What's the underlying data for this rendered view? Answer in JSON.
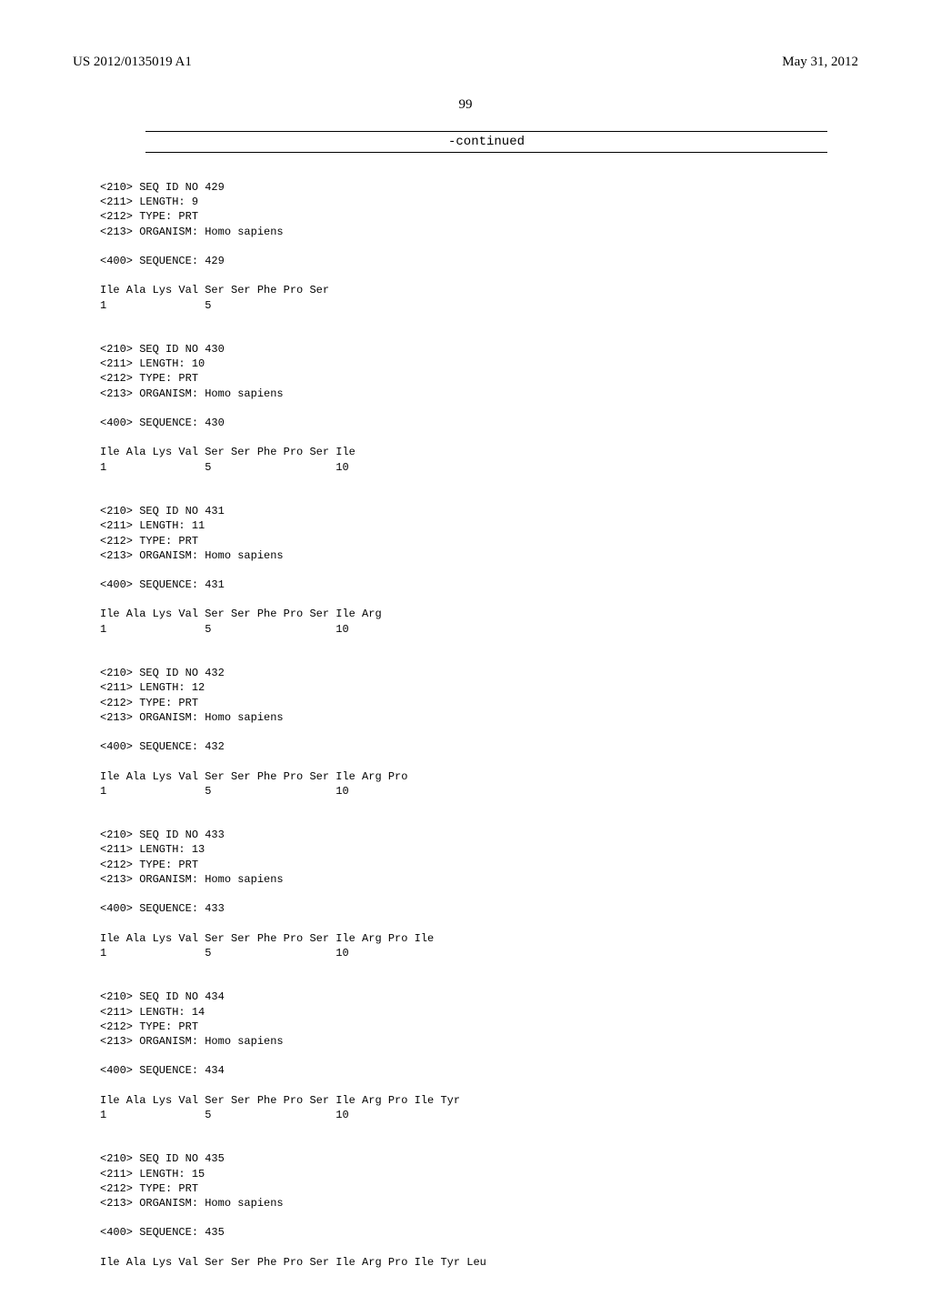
{
  "header": {
    "pub_number": "US 2012/0135019 A1",
    "pub_date": "May 31, 2012"
  },
  "page_number": "99",
  "continued_label": "-continued",
  "sequences": [
    {
      "seq_id": "<210> SEQ ID NO 429",
      "length": "<211> LENGTH: 9",
      "type": "<212> TYPE: PRT",
      "organism": "<213> ORGANISM: Homo sapiens",
      "seq_label": "<400> SEQUENCE: 429",
      "residues": "Ile Ala Lys Val Ser Ser Phe Pro Ser",
      "numbers": "1               5"
    },
    {
      "seq_id": "<210> SEQ ID NO 430",
      "length": "<211> LENGTH: 10",
      "type": "<212> TYPE: PRT",
      "organism": "<213> ORGANISM: Homo sapiens",
      "seq_label": "<400> SEQUENCE: 430",
      "residues": "Ile Ala Lys Val Ser Ser Phe Pro Ser Ile",
      "numbers": "1               5                   10"
    },
    {
      "seq_id": "<210> SEQ ID NO 431",
      "length": "<211> LENGTH: 11",
      "type": "<212> TYPE: PRT",
      "organism": "<213> ORGANISM: Homo sapiens",
      "seq_label": "<400> SEQUENCE: 431",
      "residues": "Ile Ala Lys Val Ser Ser Phe Pro Ser Ile Arg",
      "numbers": "1               5                   10"
    },
    {
      "seq_id": "<210> SEQ ID NO 432",
      "length": "<211> LENGTH: 12",
      "type": "<212> TYPE: PRT",
      "organism": "<213> ORGANISM: Homo sapiens",
      "seq_label": "<400> SEQUENCE: 432",
      "residues": "Ile Ala Lys Val Ser Ser Phe Pro Ser Ile Arg Pro",
      "numbers": "1               5                   10"
    },
    {
      "seq_id": "<210> SEQ ID NO 433",
      "length": "<211> LENGTH: 13",
      "type": "<212> TYPE: PRT",
      "organism": "<213> ORGANISM: Homo sapiens",
      "seq_label": "<400> SEQUENCE: 433",
      "residues": "Ile Ala Lys Val Ser Ser Phe Pro Ser Ile Arg Pro Ile",
      "numbers": "1               5                   10"
    },
    {
      "seq_id": "<210> SEQ ID NO 434",
      "length": "<211> LENGTH: 14",
      "type": "<212> TYPE: PRT",
      "organism": "<213> ORGANISM: Homo sapiens",
      "seq_label": "<400> SEQUENCE: 434",
      "residues": "Ile Ala Lys Val Ser Ser Phe Pro Ser Ile Arg Pro Ile Tyr",
      "numbers": "1               5                   10"
    },
    {
      "seq_id": "<210> SEQ ID NO 435",
      "length": "<211> LENGTH: 15",
      "type": "<212> TYPE: PRT",
      "organism": "<213> ORGANISM: Homo sapiens",
      "seq_label": "<400> SEQUENCE: 435",
      "residues": "Ile Ala Lys Val Ser Ser Phe Pro Ser Ile Arg Pro Ile Tyr Leu",
      "numbers": ""
    }
  ]
}
